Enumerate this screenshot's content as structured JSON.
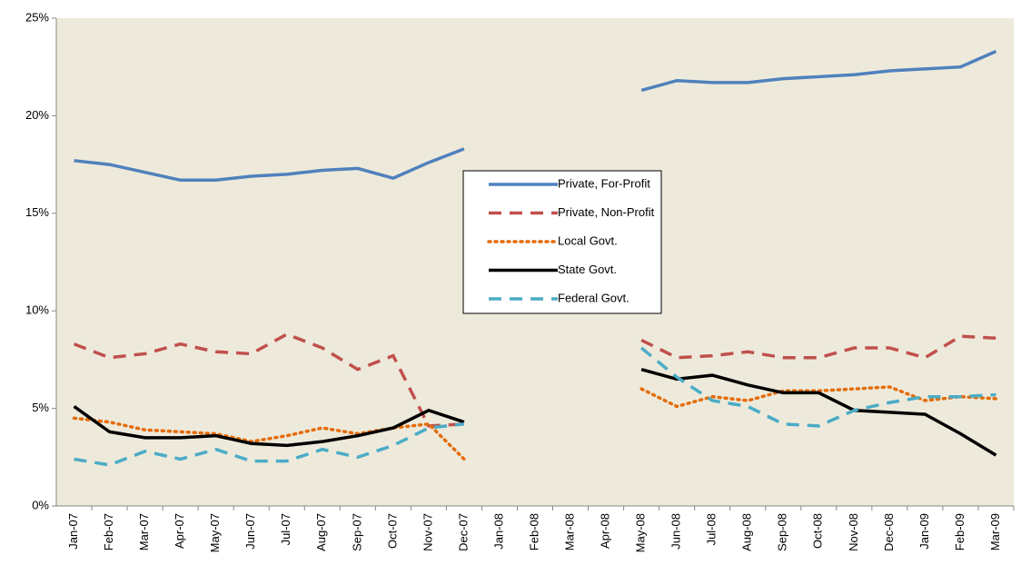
{
  "chart_data": {
    "type": "line",
    "categories": [
      "Jan-07",
      "Feb-07",
      "Mar-07",
      "Apr-07",
      "May-07",
      "Jun-07",
      "Jul-07",
      "Aug-07",
      "Sep-07",
      "Oct-07",
      "Nov-07",
      "Dec-07",
      "Jan-08",
      "Feb-08",
      "Mar-08",
      "Apr-08",
      "May-08",
      "Jun-08",
      "Jul-08",
      "Aug-08",
      "Sep-08",
      "Oct-08",
      "Nov-08",
      "Dec-08",
      "Jan-09",
      "Feb-09",
      "Mar-09"
    ],
    "series": [
      {
        "name": "Private, For-Profit",
        "color": "#4f81bd",
        "dash": "solid",
        "values": [
          17.7,
          17.5,
          17.1,
          16.7,
          16.7,
          16.9,
          17.0,
          17.2,
          17.3,
          16.8,
          17.6,
          18.3,
          null,
          null,
          null,
          null,
          21.3,
          21.8,
          21.7,
          21.7,
          21.9,
          22.0,
          22.1,
          22.3,
          22.4,
          22.5,
          23.3
        ]
      },
      {
        "name": "Private, Non-Profit",
        "color": "#c0504d",
        "dash": "dash",
        "values": [
          8.3,
          7.6,
          7.8,
          8.3,
          7.9,
          7.8,
          8.8,
          8.1,
          7.0,
          7.7,
          4.1,
          4.2,
          null,
          null,
          null,
          null,
          8.5,
          7.6,
          7.7,
          7.9,
          7.6,
          7.6,
          8.1,
          8.1,
          7.6,
          8.7,
          8.6
        ]
      },
      {
        "name": "Local Govt.",
        "color": "#e46c0a",
        "dash": "dot",
        "values": [
          4.5,
          4.3,
          3.9,
          3.8,
          3.7,
          3.3,
          3.6,
          4.0,
          3.7,
          4.0,
          4.2,
          2.4,
          null,
          null,
          null,
          null,
          6.0,
          5.1,
          5.6,
          5.4,
          5.9,
          5.9,
          6.0,
          6.1,
          5.4,
          5.6,
          5.5
        ]
      },
      {
        "name": "State Govt.",
        "color": "#000000",
        "dash": "solid",
        "values": [
          5.1,
          3.8,
          3.5,
          3.5,
          3.6,
          3.2,
          3.1,
          3.3,
          3.6,
          4.0,
          4.9,
          4.3,
          null,
          null,
          null,
          null,
          7.0,
          6.5,
          6.7,
          6.2,
          5.8,
          5.8,
          4.9,
          4.8,
          4.7,
          3.7,
          2.6
        ]
      },
      {
        "name": "Federal Govt.",
        "color": "#4bacc6",
        "dash": "dash",
        "values": [
          2.4,
          2.1,
          2.8,
          2.4,
          2.9,
          2.3,
          2.3,
          2.9,
          2.5,
          3.1,
          4.0,
          4.2,
          null,
          null,
          null,
          null,
          8.1,
          6.6,
          5.4,
          5.1,
          4.2,
          4.1,
          4.9,
          5.3,
          5.6,
          5.6,
          5.7
        ]
      }
    ],
    "ylim": [
      0,
      25
    ],
    "yticks": [
      {
        "value": 0,
        "label": "0%"
      },
      {
        "value": 5,
        "label": "5%"
      },
      {
        "value": 10,
        "label": "10%"
      },
      {
        "value": 15,
        "label": "15%"
      },
      {
        "value": 20,
        "label": "20%"
      },
      {
        "value": 25,
        "label": "25%"
      }
    ],
    "grid": false,
    "legend": "center",
    "background": "#eeeadb"
  }
}
